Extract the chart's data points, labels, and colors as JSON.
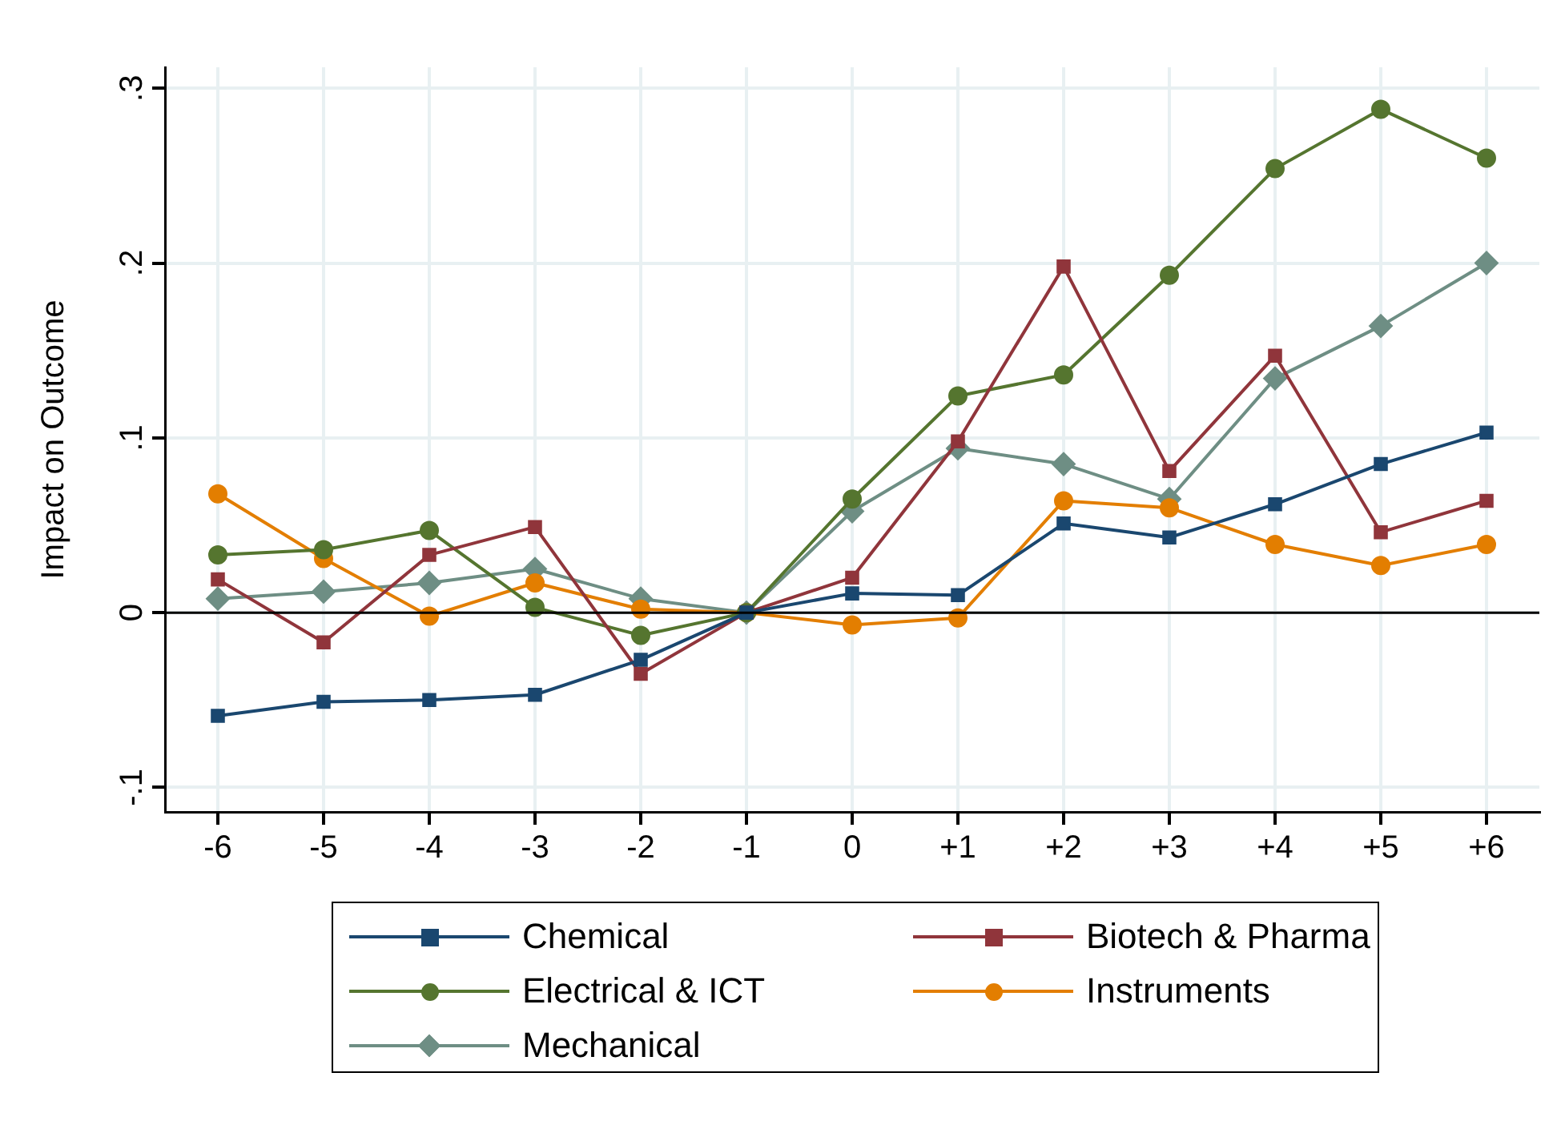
{
  "chart_data": {
    "type": "line",
    "ylabel": "Impact on Outcome",
    "categories": [
      "-6",
      "-5",
      "-4",
      "-3",
      "-2",
      "-1",
      "0",
      "+1",
      "+2",
      "+3",
      "+4",
      "+5",
      "+6"
    ],
    "ylim": [
      -0.114,
      0.312
    ],
    "yticks": [
      {
        "value": -0.1,
        "label": "-.1"
      },
      0,
      {
        "value": 0.1,
        "label": ".1"
      },
      {
        "value": 0.2,
        "label": ".2"
      },
      {
        "value": 0.3,
        "label": ".3"
      }
    ],
    "grid": true,
    "legend": "bottom",
    "line_style": "solid",
    "ref_lines": [
      {
        "axis": "y",
        "value": 0,
        "color": "#000000"
      }
    ],
    "series": [
      {
        "name": "Chemical",
        "color": "#1a476f",
        "marker": "square",
        "values": [
          -0.059,
          -0.051,
          -0.05,
          -0.047,
          -0.027,
          0,
          0.011,
          0.01,
          0.051,
          0.043,
          0.062,
          0.085,
          0.103
        ]
      },
      {
        "name": "Biotech & Pharma",
        "color": "#90353b",
        "marker": "square",
        "values": [
          0.019,
          -0.017,
          0.033,
          0.049,
          -0.035,
          0,
          0.02,
          0.098,
          0.198,
          0.081,
          0.147,
          0.046,
          0.064
        ]
      },
      {
        "name": "Electrical & ICT",
        "color": "#55752f",
        "marker": "circle",
        "values": [
          0.033,
          0.036,
          0.047,
          0.003,
          -0.013,
          0,
          0.065,
          0.124,
          0.136,
          0.193,
          0.254,
          0.288,
          0.26
        ]
      },
      {
        "name": "Instruments",
        "color": "#e37e00",
        "marker": "circle",
        "values": [
          0.068,
          0.031,
          -0.002,
          0.017,
          0.002,
          0,
          -0.007,
          -0.003,
          0.064,
          0.06,
          0.039,
          0.027,
          0.039
        ]
      },
      {
        "name": "Mechanical",
        "color": "#6e8e84",
        "marker": "diamond",
        "values": [
          0.008,
          0.012,
          0.017,
          0.025,
          0.008,
          0,
          0.058,
          0.094,
          0.085,
          0.065,
          0.134,
          0.164,
          0.2
        ]
      }
    ]
  }
}
